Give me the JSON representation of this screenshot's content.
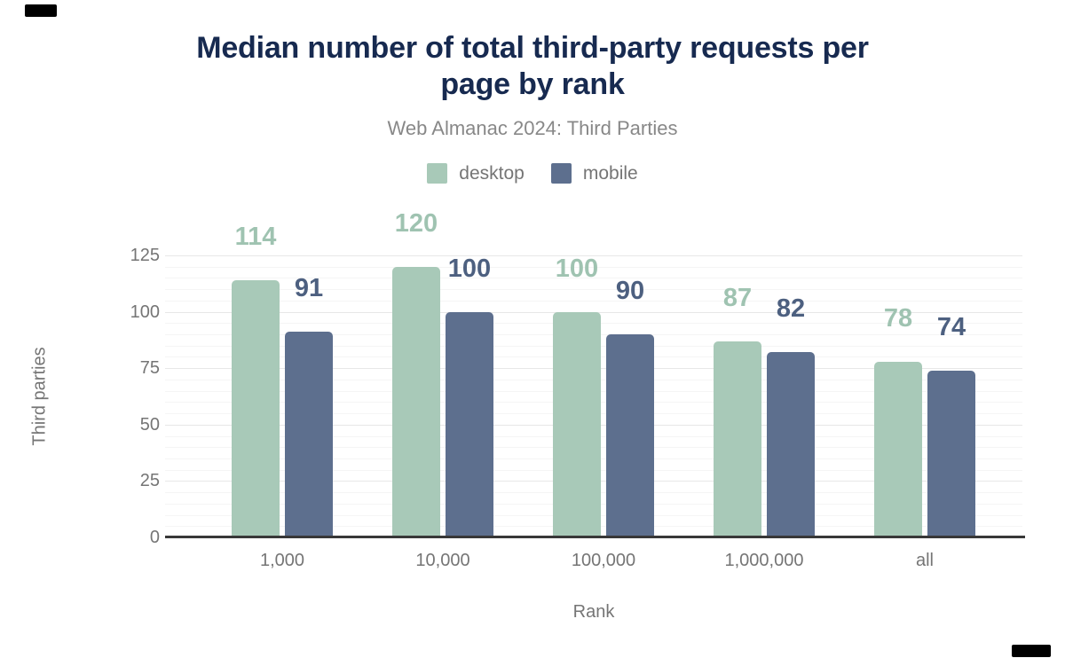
{
  "chart_data": {
    "type": "bar",
    "title": "Median number of total third-party requests per page by rank",
    "title_lines": [
      "Median number of total third-party requests per",
      "page by rank"
    ],
    "subtitle": "Web Almanac 2024: Third Parties",
    "xlabel": "Rank",
    "ylabel": "Third parties",
    "categories": [
      "1,000",
      "10,000",
      "100,000",
      "1,000,000",
      "all"
    ],
    "series": [
      {
        "name": "desktop",
        "color": "#a8c9b8",
        "label_color": "#9fc3b1",
        "values": [
          114,
          120,
          100,
          87,
          78
        ]
      },
      {
        "name": "mobile",
        "color": "#5d6f8e",
        "label_color": "#4d6080",
        "values": [
          91,
          100,
          90,
          82,
          74
        ]
      }
    ],
    "ylim": [
      0,
      125
    ],
    "yticks": [
      0,
      25,
      50,
      75,
      100,
      125
    ],
    "minor_grid_step": 5,
    "major_grid_step": 25,
    "grid": true,
    "legend_position": "top",
    "colors": {
      "title": "#172a50",
      "subtitle": "#888888",
      "axis_text": "#757575",
      "major_grid": "#e7e7e7",
      "minor_grid": "#f5f5f5",
      "baseline": "#383838",
      "background": "#ffffff",
      "corner_mark": "#000000"
    }
  }
}
